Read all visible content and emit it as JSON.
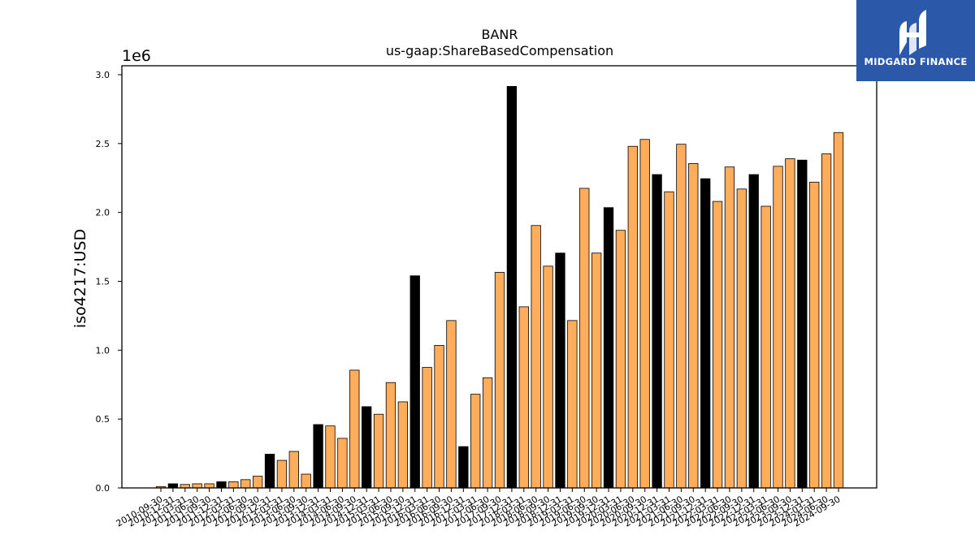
{
  "chart_data": {
    "type": "bar",
    "title": "BANR",
    "subtitle": "us-gaap:ShareBasedCompensation",
    "ylabel": "iso4217:USD",
    "xlabel": "",
    "y_multiplier_label": "1e6",
    "ylim": [
      0,
      3.05
    ],
    "y_ticks": [
      "0.0",
      "0.5",
      "1.0",
      "1.5",
      "2.0",
      "2.5",
      "3.0"
    ],
    "grid": false,
    "legend": "none",
    "colors": {
      "annual": "#000000",
      "quarterly": "#ffad5a",
      "edge": "#000000"
    },
    "categories": [
      "2010-09-30",
      "2010-12-31",
      "2011-03-31",
      "2011-06-30",
      "2011-09-30",
      "2011-12-31",
      "2012-03-31",
      "2012-06-30",
      "2012-09-30",
      "2012-12-31",
      "2013-03-31",
      "2013-06-30",
      "2013-09-30",
      "2013-12-31",
      "2014-03-31",
      "2014-06-30",
      "2014-09-30",
      "2014-12-31",
      "2015-03-31",
      "2015-06-30",
      "2015-09-30",
      "2015-12-31",
      "2016-03-31",
      "2016-06-30",
      "2016-09-30",
      "2016-12-31",
      "2017-03-31",
      "2017-06-30",
      "2017-09-30",
      "2017-12-31",
      "2018-03-31",
      "2018-06-30",
      "2018-09-30",
      "2018-12-31",
      "2019-03-31",
      "2019-06-30",
      "2019-09-30",
      "2019-12-31",
      "2020-03-31",
      "2020-06-30",
      "2020-09-30",
      "2020-12-31",
      "2021-03-31",
      "2021-06-30",
      "2021-09-30",
      "2021-12-31",
      "2022-03-31",
      "2022-06-30",
      "2022-09-30",
      "2022-12-31",
      "2023-03-31",
      "2023-06-30",
      "2023-09-30",
      "2023-12-31",
      "2024-03-31",
      "2024-06-30",
      "2024-09-30"
    ],
    "series": [
      {
        "values": [
          0.01,
          0.03,
          0.025,
          0.03,
          0.03,
          0.045,
          0.045,
          0.06,
          0.085,
          0.245,
          0.2,
          0.265,
          0.1,
          0.46,
          0.45,
          0.36,
          0.855,
          0.59,
          0.535,
          0.765,
          0.625,
          1.54,
          0.875,
          1.035,
          1.215,
          0.3,
          0.68,
          0.8,
          1.565,
          2.915,
          1.315,
          1.905,
          1.61,
          1.705,
          1.215,
          2.175,
          1.705,
          2.035,
          1.87,
          2.48,
          2.53,
          2.275,
          2.15,
          2.495,
          2.355,
          2.245,
          2.08,
          2.33,
          2.17,
          2.275,
          2.045,
          2.335,
          2.39,
          2.38,
          2.22,
          2.425,
          2.58
        ],
        "kinds": [
          "q",
          "a",
          "q",
          "q",
          "q",
          "a",
          "q",
          "q",
          "q",
          "a",
          "q",
          "q",
          "q",
          "a",
          "q",
          "q",
          "q",
          "a",
          "q",
          "q",
          "q",
          "a",
          "q",
          "q",
          "q",
          "a",
          "q",
          "q",
          "q",
          "a",
          "q",
          "q",
          "q",
          "a",
          "q",
          "q",
          "q",
          "a",
          "q",
          "q",
          "q",
          "a",
          "q",
          "q",
          "q",
          "a",
          "q",
          "q",
          "q",
          "a",
          "q",
          "q",
          "q",
          "a",
          "q",
          "q",
          "q"
        ]
      }
    ]
  },
  "brand": {
    "name": "MIDGARD FINANCE",
    "color": "#2b58a8"
  }
}
